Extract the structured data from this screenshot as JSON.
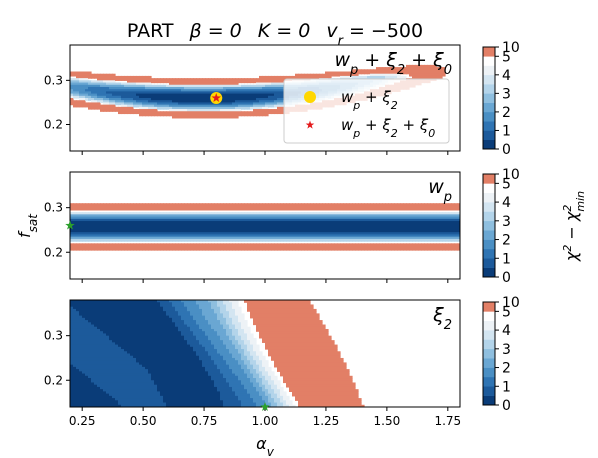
{
  "chart_data": {
    "type": "contour",
    "title": "PART   β = 0   K = 0   v_r = −500",
    "title_parts": {
      "name": "PART",
      "beta": "β = 0",
      "k": "K = 0",
      "vr_lhs": "v",
      "vr_sub": "r",
      "vr_rhs": " = −500"
    },
    "xlabel": "α_v",
    "ylabel": "f_sat",
    "colorbar_label": "χ² − χ²_min",
    "xlim": [
      0.2,
      1.8
    ],
    "ylim": [
      0.14,
      0.38
    ],
    "xticks": [
      0.25,
      0.5,
      0.75,
      1.0,
      1.25,
      1.5,
      1.75
    ],
    "xtick_labels": [
      "0.25",
      "0.50",
      "0.75",
      "1.00",
      "1.25",
      "1.50",
      "1.75"
    ],
    "yticks": [
      0.2,
      0.3
    ],
    "ytick_labels": [
      "0.2",
      "0.3"
    ],
    "levels": [
      0,
      0.5,
      1,
      1.5,
      2,
      2.5,
      3,
      3.5,
      4,
      4.5,
      5,
      10
    ],
    "colorbar_ticks": [
      0,
      1,
      2,
      3,
      4,
      5,
      10
    ],
    "colorbar_tick_labels": [
      "0",
      "1",
      "2",
      "3",
      "4",
      "5",
      "10"
    ],
    "colors": [
      "#0a3c78",
      "#1c5a9b",
      "#2f74b3",
      "#4a8fc4",
      "#6aa7d3",
      "#8fbfdf",
      "#b3d4ea",
      "#d3e5f1",
      "#edf2f6",
      "#ffffff",
      "#e27f66"
    ],
    "panels": [
      {
        "title": "w_p + ξ_2 + ξ_0",
        "title_parts": [
          "w",
          "p",
          " + ξ",
          "2",
          "  + ξ",
          "0"
        ],
        "legend": [
          {
            "label_parts": [
              "w",
              "p",
              " + ξ",
              "2"
            ],
            "marker": "circle",
            "color": "#ffd700"
          },
          {
            "label_parts": [
              "w",
              "p",
              " + ξ",
              "2",
              " + ξ",
              "0"
            ],
            "marker": "star",
            "color": "#e41a1c"
          }
        ],
        "markers": [
          {
            "x": 0.8,
            "y": 0.26,
            "marker": "circle",
            "color": "#ffd700"
          },
          {
            "x": 0.8,
            "y": 0.26,
            "marker": "star",
            "color": "#e41a1c"
          }
        ]
      },
      {
        "title": "w_p",
        "title_parts": [
          "w",
          "p"
        ],
        "markers": [
          {
            "x": 0.2,
            "y": 0.26,
            "marker": "star",
            "color": "#2ca02c"
          }
        ]
      },
      {
        "title": "ξ_2",
        "title_parts": [
          "ξ",
          "2"
        ],
        "markers": [
          {
            "x": 1.0,
            "y": 0.14,
            "marker": "star",
            "color": "#2ca02c"
          }
        ]
      }
    ]
  }
}
